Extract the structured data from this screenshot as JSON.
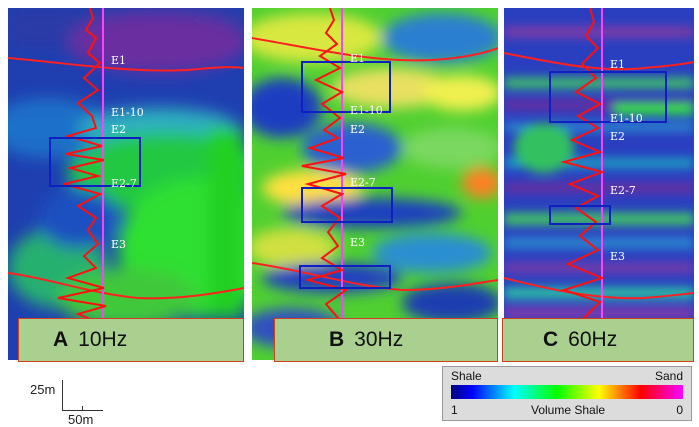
{
  "panels": [
    {
      "letter": "A",
      "freq": "10Hz"
    },
    {
      "letter": "B",
      "freq": "30Hz"
    },
    {
      "letter": "C",
      "freq": "60Hz"
    }
  ],
  "horizons": [
    "E1",
    "E1-10",
    "E2",
    "E2-7",
    "E3"
  ],
  "scale": {
    "vertical": "25m",
    "horizontal": "50m"
  },
  "legend": {
    "left_label": "Shale",
    "right_label": "Sand",
    "min": "1",
    "title": "Volume Shale",
    "max": "0",
    "colors": [
      "#00007f",
      "#0000ff",
      "#00ffff",
      "#00ff00",
      "#ffff00",
      "#ff8000",
      "#ff0000",
      "#ff00ff"
    ]
  }
}
